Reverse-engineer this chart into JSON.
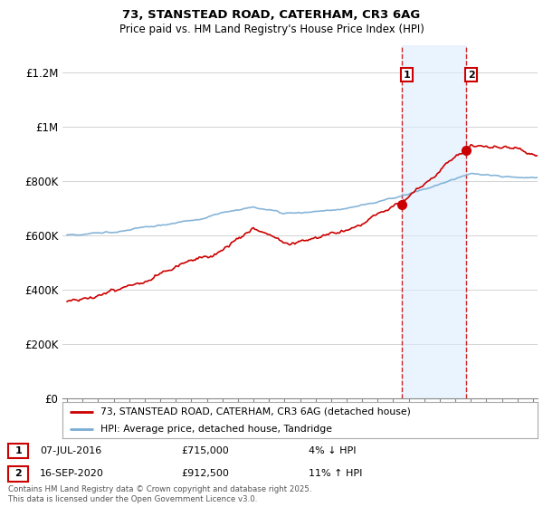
{
  "title_line1": "73, STANSTEAD ROAD, CATERHAM, CR3 6AG",
  "title_line2": "Price paid vs. HM Land Registry's House Price Index (HPI)",
  "legend_label_red": "73, STANSTEAD ROAD, CATERHAM, CR3 6AG (detached house)",
  "legend_label_blue": "HPI: Average price, detached house, Tandridge",
  "annotation1_date": "07-JUL-2016",
  "annotation1_price": "£715,000",
  "annotation1_pct": "4% ↓ HPI",
  "annotation2_date": "16-SEP-2020",
  "annotation2_price": "£912,500",
  "annotation2_pct": "11% ↑ HPI",
  "footer": "Contains HM Land Registry data © Crown copyright and database right 2025.\nThis data is licensed under the Open Government Licence v3.0.",
  "y_ticks": [
    0,
    200000,
    400000,
    600000,
    800000,
    1000000,
    1200000
  ],
  "y_tick_labels": [
    "£0",
    "£200K",
    "£400K",
    "£600K",
    "£800K",
    "£1M",
    "£1.2M"
  ],
  "ylim": [
    0,
    1300000
  ],
  "x_start_year": 1995,
  "x_end_year": 2025,
  "vline1_year": 2016.54,
  "vline2_year": 2020.71,
  "dot1_year": 2016.54,
  "dot1_value": 715000,
  "dot2_year": 2020.71,
  "dot2_value": 912500,
  "color_red": "#cc0000",
  "color_blue": "#7aadd4",
  "color_vline": "#cc0000",
  "color_fill": "#ddeeff",
  "background_color": "#ffffff",
  "grid_color": "#cccccc"
}
